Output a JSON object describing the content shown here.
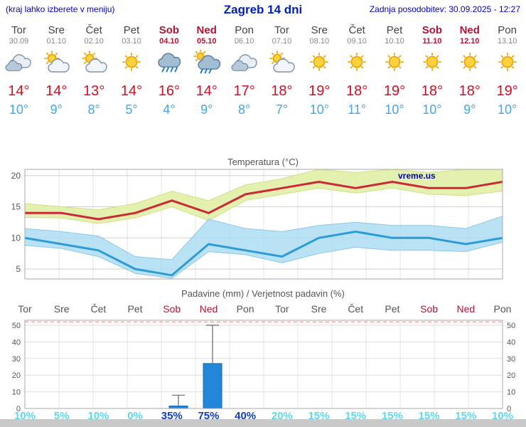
{
  "header": {
    "hint": "(kraj lahko izberete v meniju)",
    "title": "Zagreb 14 dni",
    "updated": "Zadnja posodobitev: 30.09.2025 - 12:27"
  },
  "colors": {
    "link_blue": "#0000cc",
    "title_blue": "#0022bb",
    "tmax_red": "#cc1122",
    "tmin_blue": "#44a6e4",
    "weekend_red": "#b01535",
    "weekday_gray": "#444444",
    "date_gray": "#888888",
    "prob_normal": "#5cd9ee",
    "prob_strong": "#1040c0",
    "bar_blue": "#2287d8",
    "line_max": "#cc2936",
    "line_min": "#2d9bd8",
    "band_max": "#e4f1ae",
    "band_min": "#a9dcf3",
    "ref_red": "#f09090"
  },
  "days": [
    {
      "name": "Tor",
      "date": "30.09",
      "icon": "cloudy",
      "tmax": "14°",
      "tmin": "10°",
      "weekend": false
    },
    {
      "name": "Sre",
      "date": "01.10",
      "icon": "partly-cloudy",
      "tmax": "14°",
      "tmin": "9°",
      "weekend": false
    },
    {
      "name": "Čet",
      "date": "02.10",
      "icon": "partly-cloudy",
      "tmax": "13°",
      "tmin": "8°",
      "weekend": false
    },
    {
      "name": "Pet",
      "date": "03.10",
      "icon": "sunny",
      "tmax": "14°",
      "tmin": "5°",
      "weekend": false
    },
    {
      "name": "Sob",
      "date": "04.10",
      "icon": "rain",
      "tmax": "16°",
      "tmin": "4°",
      "weekend": true
    },
    {
      "name": "Ned",
      "date": "05.10",
      "icon": "rain-sun",
      "tmax": "14°",
      "tmin": "9°",
      "weekend": true
    },
    {
      "name": "Pon",
      "date": "06.10",
      "icon": "cloudy",
      "tmax": "17°",
      "tmin": "8°",
      "weekend": false
    },
    {
      "name": "Tor",
      "date": "07.10",
      "icon": "partly-cloudy",
      "tmax": "18°",
      "tmin": "7°",
      "weekend": false
    },
    {
      "name": "Sre",
      "date": "08.10",
      "icon": "sunny",
      "tmax": "19°",
      "tmin": "10°",
      "weekend": false
    },
    {
      "name": "Čet",
      "date": "09.10",
      "icon": "sunny",
      "tmax": "18°",
      "tmin": "11°",
      "weekend": false
    },
    {
      "name": "Pet",
      "date": "10.10",
      "icon": "sunny",
      "tmax": "19°",
      "tmin": "10°",
      "weekend": false
    },
    {
      "name": "Sob",
      "date": "11.10",
      "icon": "sunny",
      "tmax": "18°",
      "tmin": "10°",
      "weekend": true
    },
    {
      "name": "Ned",
      "date": "12.10",
      "icon": "sunny",
      "tmax": "18°",
      "tmin": "9°",
      "weekend": true
    },
    {
      "name": "Pon",
      "date": "13.10",
      "icon": "sunny",
      "tmax": "19°",
      "tmin": "10°",
      "weekend": false
    }
  ],
  "chart_data": [
    {
      "type": "line",
      "title": "Temperatura (°C)",
      "watermark": "vreme.us",
      "categories": [
        "Tor",
        "Sre",
        "Čet",
        "Pet",
        "Sob",
        "Ned",
        "Pon",
        "Tor",
        "Sre",
        "Čet",
        "Pet",
        "Sob",
        "Ned",
        "Pon"
      ],
      "series": [
        {
          "name": "max-temperature",
          "color": "#cc2936",
          "values": [
            14,
            14,
            13,
            14,
            16,
            14,
            17,
            18,
            19,
            18,
            19,
            18,
            18,
            19
          ]
        },
        {
          "name": "min-temperature",
          "color": "#2d9bd8",
          "values": [
            10,
            9,
            8,
            5,
            4,
            9,
            8,
            7,
            10,
            11,
            10,
            10,
            9,
            10
          ]
        }
      ],
      "bands": [
        {
          "name": "max-range",
          "color": "#e4f1ae",
          "edge": "#cde284",
          "opacity": 1,
          "upper": [
            15.5,
            15,
            14.5,
            15.5,
            17.5,
            16,
            18.5,
            19.5,
            21,
            20.5,
            21,
            20.5,
            21,
            22.5
          ],
          "lower": [
            13.3,
            13.2,
            12.3,
            13.2,
            15,
            12.8,
            16,
            17,
            18,
            17.2,
            18,
            17,
            16.8,
            17.5
          ]
        },
        {
          "name": "min-range",
          "color": "#a9dcf3",
          "edge": "#8cc8e8",
          "opacity": 0.82,
          "upper": [
            11.5,
            11,
            10.3,
            7,
            6.5,
            13,
            11.5,
            11,
            12,
            12.5,
            12,
            12,
            11.5,
            13.5
          ],
          "lower": [
            8.8,
            8.3,
            7,
            4.3,
            3.5,
            7.8,
            7.3,
            6,
            7.5,
            8.5,
            8,
            8,
            7.8,
            9.3
          ]
        }
      ],
      "yticks": [
        5,
        10,
        15,
        20
      ],
      "ylim": [
        3.4,
        21
      ],
      "grid": true,
      "legend": false
    },
    {
      "type": "bar",
      "title": "Padavine (mm) / Verjetnost padavin (%)",
      "categories": [
        "Tor",
        "Sre",
        "Čet",
        "Pet",
        "Sob",
        "Ned",
        "Pon",
        "Tor",
        "Sre",
        "Čet",
        "Pet",
        "Sob",
        "Ned",
        "Pon"
      ],
      "values": [
        0,
        0,
        0,
        0,
        1.5,
        27,
        0,
        0,
        0,
        0,
        0,
        0,
        0,
        0
      ],
      "range_max": [
        0,
        0,
        0,
        0,
        8,
        50,
        0,
        0,
        0,
        0,
        0,
        0,
        0,
        0
      ],
      "probabilities": [
        "10%",
        "5%",
        "10%",
        "0%",
        "35%",
        "75%",
        "40%",
        "20%",
        "15%",
        "15%",
        "15%",
        "15%",
        "15%",
        "10%"
      ],
      "prob_strong": [
        false,
        false,
        false,
        false,
        true,
        true,
        true,
        false,
        false,
        false,
        false,
        false,
        false,
        false
      ],
      "yticks": [
        0,
        10,
        20,
        30,
        40,
        50
      ],
      "ylim": [
        0,
        53
      ],
      "ref_line": 52,
      "grid": true,
      "legend": false
    }
  ]
}
